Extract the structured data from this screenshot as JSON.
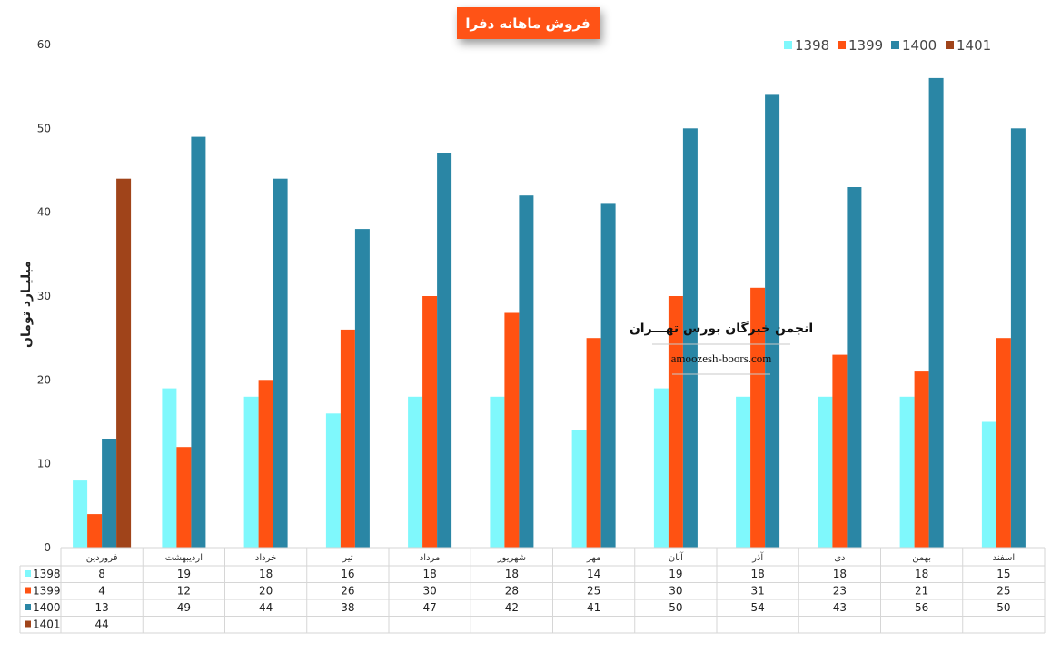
{
  "chart_data": {
    "type": "bar",
    "title": "فروش ماهانه دفرا",
    "ylabel": "میلیـارد تومان",
    "xlabel": "",
    "ylim": [
      0,
      60
    ],
    "yticks": [
      0,
      10,
      20,
      30,
      40,
      50,
      60
    ],
    "grid": false,
    "legend_position": "top-right",
    "categories": [
      "فروردین",
      "اردیبهشت",
      "خرداد",
      "تیر",
      "مرداد",
      "شهریور",
      "مهر",
      "آبان",
      "آذر",
      "دی",
      "بهمن",
      "اسفند"
    ],
    "series": [
      {
        "name": "1398",
        "color": "#7ff8fc",
        "values": [
          8,
          19,
          18,
          16,
          18,
          18,
          14,
          19,
          18,
          18,
          18,
          15
        ]
      },
      {
        "name": "1399",
        "color": "#ff5212",
        "values": [
          4,
          12,
          20,
          26,
          30,
          28,
          25,
          30,
          31,
          23,
          21,
          25
        ]
      },
      {
        "name": "1400",
        "color": "#2a86a5",
        "values": [
          13,
          49,
          44,
          38,
          47,
          42,
          41,
          50,
          54,
          43,
          56,
          50
        ]
      },
      {
        "name": "1401",
        "color": "#a0441a",
        "values": [
          44,
          null,
          null,
          null,
          null,
          null,
          null,
          null,
          null,
          null,
          null,
          null
        ]
      }
    ],
    "data_table": true
  },
  "watermark": {
    "line1": "انجمن خبرگان بورس تهـــران",
    "line2": "amoozesh-boors.com"
  },
  "colors": {
    "title_bg": "#ff5212",
    "title_text": "#ffffff",
    "table_border": "#d6d6d6"
  }
}
